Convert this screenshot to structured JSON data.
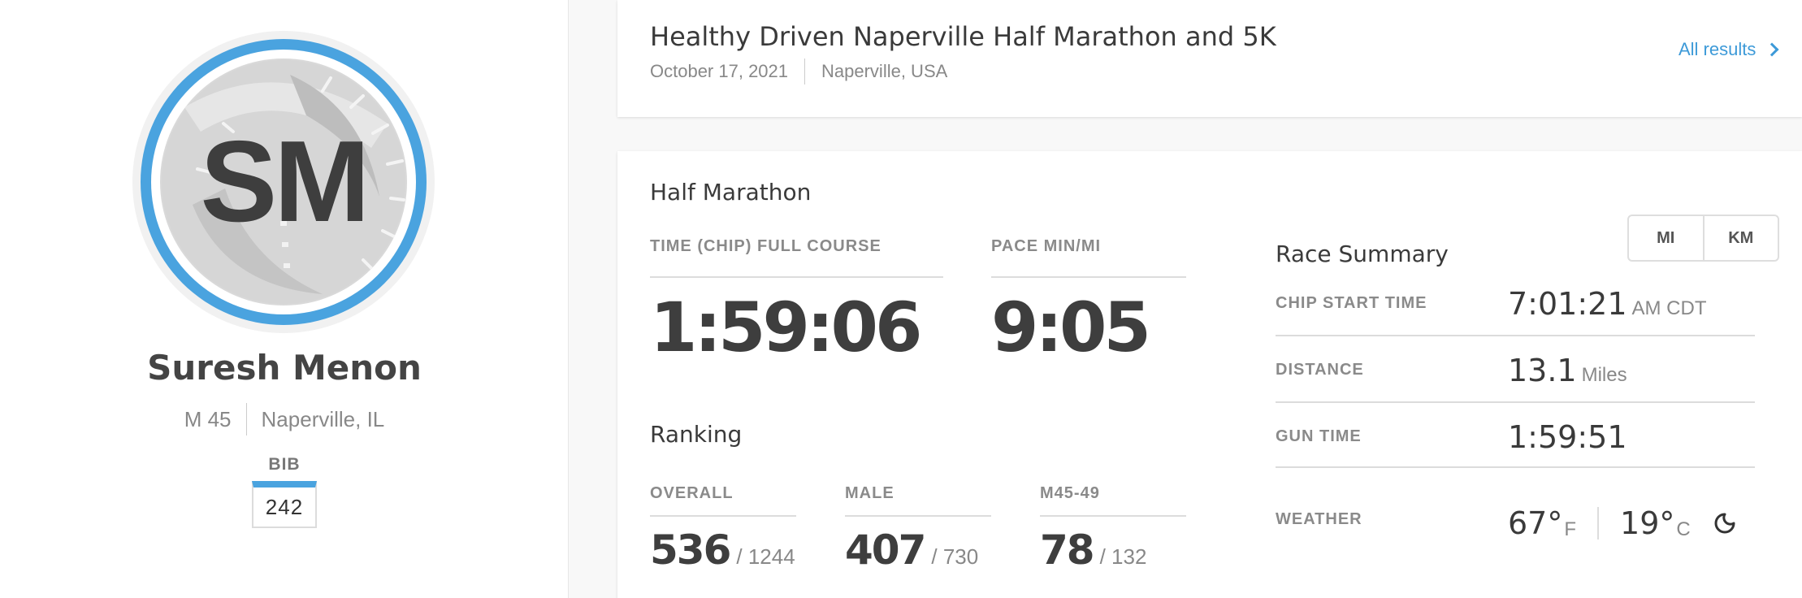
{
  "profile": {
    "initials": "SM",
    "name": "Suresh Menon",
    "gender_age": "M 45",
    "location": "Naperville, IL",
    "bib_label": "BIB",
    "bib_number": "242"
  },
  "event": {
    "title": "Healthy Driven Naperville Half Marathon and 5K",
    "date": "October 17, 2021",
    "location": "Naperville, USA",
    "all_results_label": "All results"
  },
  "results": {
    "race_name": "Half Marathon",
    "time_label": "TIME (CHIP) FULL COURSE",
    "time_value": "1:59:06",
    "pace_label": "PACE MIN/MI",
    "pace_value": "9:05",
    "ranking_title": "Ranking",
    "rankings": [
      {
        "label": "OVERALL",
        "place": "536",
        "total": "/ 1244"
      },
      {
        "label": "MALE",
        "place": "407",
        "total": "/ 730"
      },
      {
        "label": "M45-49",
        "place": "78",
        "total": "/ 132"
      }
    ]
  },
  "units": {
    "mi_label": "MI",
    "km_label": "KM"
  },
  "summary": {
    "title": "Race Summary",
    "chip_start_label": "CHIP START TIME",
    "chip_start_value": "7:01:21",
    "chip_start_suffix": "AM CDT",
    "distance_label": "DISTANCE",
    "distance_value": "13.1",
    "distance_unit": "Miles",
    "gun_time_label": "GUN TIME",
    "gun_time_value": "1:59:51",
    "weather_label": "WEATHER",
    "temp_f": "67°",
    "temp_f_unit": "F",
    "temp_c": "19°",
    "temp_c_unit": "C"
  },
  "colors": {
    "accent": "#4aa3df",
    "link": "#3d9ad8",
    "text": "#444444"
  }
}
